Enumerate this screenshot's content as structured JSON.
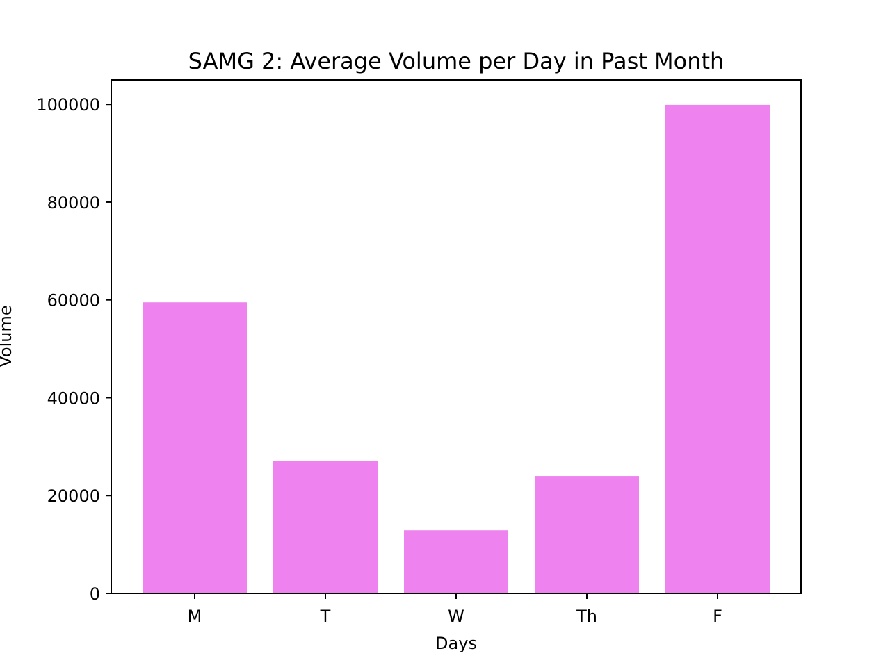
{
  "chart_data": {
    "type": "bar",
    "title": "SAMG 2: Average Volume per Day in Past Month",
    "xlabel": "Days",
    "ylabel": "Volume",
    "categories": [
      "M",
      "T",
      "W",
      "Th",
      "F"
    ],
    "values": [
      59500,
      27100,
      12900,
      24000,
      99900
    ],
    "ylim": [
      0,
      105000
    ],
    "yticks": [
      0,
      20000,
      40000,
      60000,
      80000,
      100000
    ],
    "ytick_labels": [
      "0",
      "20000",
      "40000",
      "60000",
      "80000",
      "100000"
    ],
    "bar_color": "#ee82ee",
    "grid": false,
    "legend": "none"
  }
}
